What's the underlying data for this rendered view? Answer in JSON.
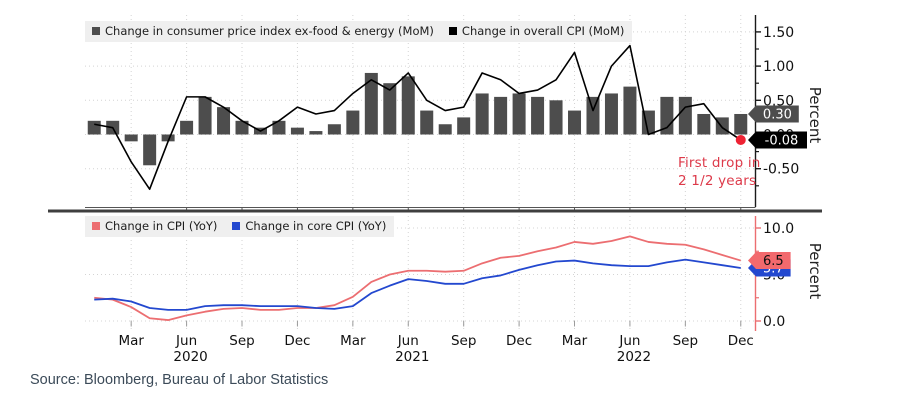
{
  "figure": {
    "source_text": "Source: Bloomberg, Bureau of Labor Statistics",
    "background": "#ffffff",
    "grid_color": "#d4d4d4",
    "divider_color": "#3f3f3f"
  },
  "x_axis": {
    "categories": [
      "Jan 2020",
      "Feb 2020",
      "Mar 2020",
      "Apr 2020",
      "May 2020",
      "Jun 2020",
      "Jul 2020",
      "Aug 2020",
      "Sep 2020",
      "Oct 2020",
      "Nov 2020",
      "Dec 2020",
      "Jan 2021",
      "Feb 2021",
      "Mar 2021",
      "Apr 2021",
      "May 2021",
      "Jun 2021",
      "Jul 2021",
      "Aug 2021",
      "Sep 2021",
      "Oct 2021",
      "Nov 2021",
      "Dec 2021",
      "Jan 2022",
      "Feb 2022",
      "Mar 2022",
      "Apr 2022",
      "May 2022",
      "Jun 2022",
      "Jul 2022",
      "Aug 2022",
      "Sep 2022",
      "Oct 2022",
      "Nov 2022",
      "Dec 2022"
    ],
    "ticks": [
      {
        "index": 2,
        "label": "Mar"
      },
      {
        "index": 5,
        "label": "Jun",
        "year": "2020"
      },
      {
        "index": 8,
        "label": "Sep"
      },
      {
        "index": 11,
        "label": "Dec"
      },
      {
        "index": 14,
        "label": "Mar"
      },
      {
        "index": 17,
        "label": "Jun",
        "year": "2021"
      },
      {
        "index": 20,
        "label": "Sep"
      },
      {
        "index": 23,
        "label": "Dec"
      },
      {
        "index": 26,
        "label": "Mar"
      },
      {
        "index": 29,
        "label": "Jun",
        "year": "2022"
      },
      {
        "index": 32,
        "label": "Sep"
      },
      {
        "index": 35,
        "label": "Dec"
      }
    ]
  },
  "chart_data": [
    {
      "panel": "top",
      "type": "bar",
      "ylabel": "Percent",
      "ylim": [
        -1.05,
        1.78
      ],
      "yticks": [
        1.5,
        1.0,
        0.5,
        0.0,
        -0.5
      ],
      "ytick_labels": [
        "1.50",
        "1.00",
        "0.50",
        "0.00",
        "-0.50"
      ],
      "minor_yticks": [
        1.25,
        0.75,
        0.25,
        -0.25,
        -0.75
      ],
      "grid": "dotted",
      "legend_position": "top-left",
      "axis_color": "#1a1a1a",
      "series": [
        {
          "name": "Change in consumer price index ex-food & energy (MoM)",
          "type": "bar",
          "color": "#4d4d4d",
          "values": [
            0.2,
            0.2,
            -0.1,
            -0.45,
            -0.1,
            0.2,
            0.55,
            0.4,
            0.2,
            0.1,
            0.2,
            0.1,
            0.05,
            0.15,
            0.35,
            0.9,
            0.75,
            0.85,
            0.35,
            0.15,
            0.25,
            0.6,
            0.55,
            0.6,
            0.55,
            0.5,
            0.35,
            0.55,
            0.6,
            0.7,
            0.35,
            0.55,
            0.55,
            0.3,
            0.25,
            0.3
          ]
        },
        {
          "name": "Change in overall CPI (MoM)",
          "type": "line",
          "color": "#000000",
          "values": [
            0.15,
            0.1,
            -0.4,
            -0.8,
            -0.1,
            0.55,
            0.55,
            0.4,
            0.2,
            0.05,
            0.2,
            0.4,
            0.3,
            0.35,
            0.6,
            0.8,
            0.65,
            0.9,
            0.5,
            0.35,
            0.4,
            0.9,
            0.8,
            0.6,
            0.65,
            0.8,
            1.2,
            0.35,
            1.0,
            1.3,
            0.0,
            0.1,
            0.4,
            0.45,
            0.1,
            -0.08
          ]
        }
      ],
      "callouts": [
        {
          "text": "0.30",
          "value": 0.3,
          "bg": "#4d4d4d",
          "fg": "#ffffff"
        },
        {
          "text": "-0.08",
          "value": -0.08,
          "bg": "#000000",
          "fg": "#ffffff"
        }
      ],
      "annotation": {
        "lines": [
          "First drop in",
          "2 1/2 years"
        ],
        "color": "#dd3a4a",
        "dot_color": "#ee2233",
        "dot_month_index": 35,
        "dot_value": -0.08
      }
    },
    {
      "panel": "bottom",
      "type": "line",
      "ylabel": "Percent",
      "ylim": [
        -1.15,
        11.3
      ],
      "yticks": [
        10.0,
        5.0,
        0.0
      ],
      "ytick_labels": [
        "10.0",
        "5.0",
        "0.0"
      ],
      "minor_yticks": [
        7.5,
        2.5
      ],
      "grid": "dotted",
      "legend_position": "top-left",
      "axis_color": "#ec6e71",
      "series": [
        {
          "name": "Change in CPI (YoY)",
          "type": "line",
          "color": "#ec6e71",
          "values": [
            2.5,
            2.3,
            1.5,
            0.3,
            0.1,
            0.6,
            1.0,
            1.3,
            1.4,
            1.2,
            1.2,
            1.4,
            1.4,
            1.7,
            2.6,
            4.2,
            5.0,
            5.4,
            5.4,
            5.3,
            5.4,
            6.2,
            6.8,
            7.0,
            7.5,
            7.9,
            8.5,
            8.3,
            8.6,
            9.1,
            8.5,
            8.3,
            8.2,
            7.7,
            7.1,
            6.5
          ]
        },
        {
          "name": "Change in core CPI (YoY)",
          "type": "line",
          "color": "#2348cf",
          "values": [
            2.3,
            2.4,
            2.1,
            1.4,
            1.2,
            1.2,
            1.6,
            1.7,
            1.7,
            1.6,
            1.6,
            1.6,
            1.4,
            1.3,
            1.6,
            3.0,
            3.8,
            4.5,
            4.3,
            4.0,
            4.0,
            4.6,
            4.9,
            5.5,
            6.0,
            6.4,
            6.5,
            6.2,
            6.0,
            5.9,
            5.9,
            6.3,
            6.6,
            6.3,
            6.0,
            5.7
          ]
        }
      ],
      "callouts": [
        {
          "text": "5.7",
          "value": 5.7,
          "bg": "#2348cf",
          "fg": "#ffffff"
        },
        {
          "text": "6.5",
          "value": 6.5,
          "bg": "#f2696d",
          "fg": "#101010"
        }
      ]
    }
  ]
}
